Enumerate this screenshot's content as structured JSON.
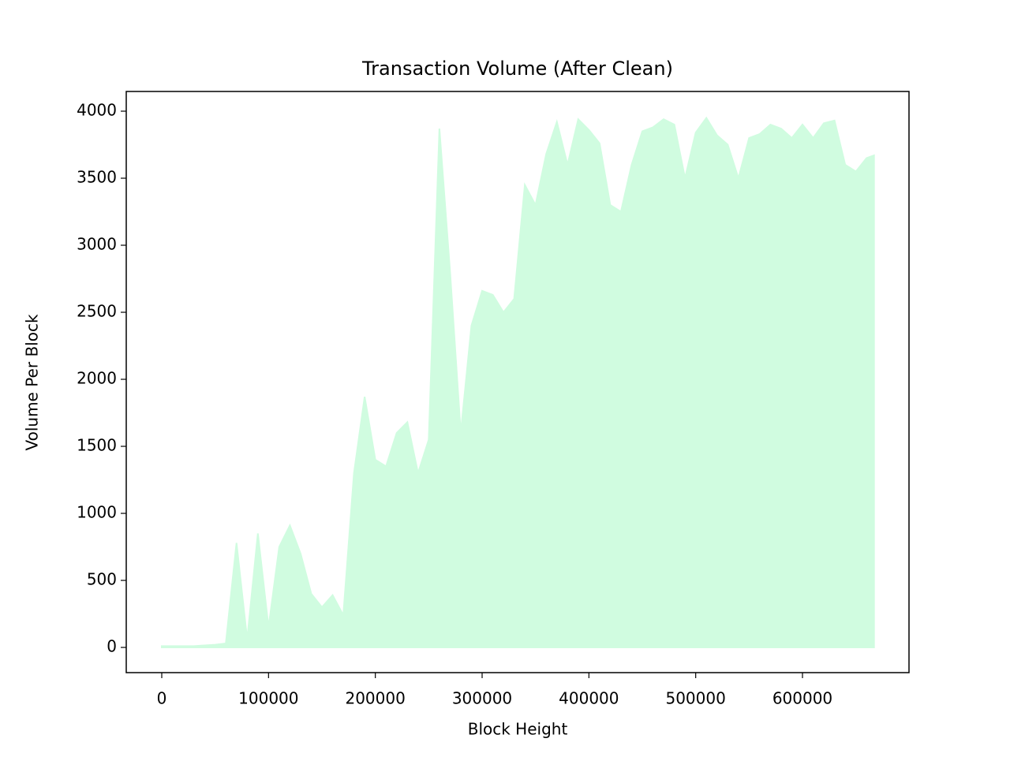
{
  "chart_data": {
    "type": "area",
    "title": "Transaction Volume (After Clean)",
    "x_label": "Block Height",
    "y_label": "Volume Per Block",
    "color": "#d0fce0",
    "x": [
      0,
      10000,
      20000,
      30000,
      40000,
      50000,
      60000,
      70000,
      80000,
      90000,
      100000,
      110000,
      120000,
      130000,
      140000,
      150000,
      160000,
      170000,
      180000,
      190000,
      200000,
      210000,
      220000,
      230000,
      240000,
      250000,
      260000,
      270000,
      280000,
      290000,
      300000,
      310000,
      320000,
      330000,
      340000,
      350000,
      360000,
      370000,
      380000,
      390000,
      400000,
      410000,
      420000,
      430000,
      440000,
      450000,
      460000,
      470000,
      480000,
      490000,
      500000,
      510000,
      520000,
      530000,
      540000,
      550000,
      560000,
      570000,
      580000,
      590000,
      600000,
      610000,
      620000,
      630000,
      640000,
      650000,
      660000,
      667000
    ],
    "values": [
      10,
      10,
      10,
      10,
      15,
      20,
      30,
      780,
      60,
      850,
      150,
      750,
      910,
      700,
      400,
      300,
      390,
      240,
      1300,
      1870,
      1400,
      1350,
      1600,
      1680,
      1300,
      1550,
      3870,
      2800,
      1600,
      2400,
      2660,
      2630,
      2500,
      2600,
      3450,
      3300,
      3680,
      3920,
      3600,
      3940,
      3860,
      3760,
      3300,
      3250,
      3600,
      3850,
      3880,
      3940,
      3900,
      3500,
      3840,
      3950,
      3820,
      3750,
      3500,
      3800,
      3830,
      3900,
      3870,
      3800,
      3900,
      3800,
      3910,
      3930,
      3600,
      3550,
      3650,
      3670
    ],
    "xlim": [
      -33250,
      699750
    ],
    "ylim": [
      -188,
      4147
    ],
    "xticks": [
      0,
      100000,
      200000,
      300000,
      400000,
      500000,
      600000
    ],
    "yticks": [
      0,
      500,
      1000,
      1500,
      2000,
      2500,
      3000,
      3500,
      4000
    ]
  }
}
